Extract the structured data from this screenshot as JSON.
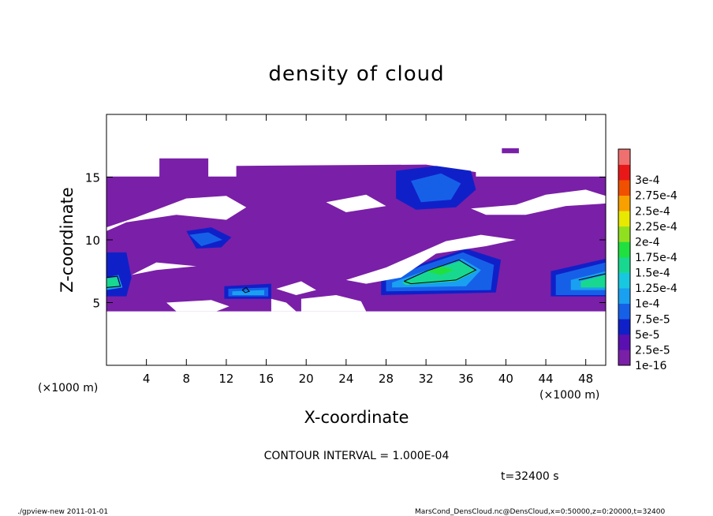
{
  "chart_data": {
    "type": "heatmap",
    "title": "density of cloud",
    "xlabel": "X-coordinate",
    "ylabel": "Z-coordinate",
    "x_unit_left": "(×1000 m)",
    "x_unit_right": "(×1000 m)",
    "xlim": [
      0,
      50
    ],
    "ylim": [
      0,
      20
    ],
    "x_ticks": [
      4,
      8,
      12,
      16,
      20,
      24,
      28,
      32,
      36,
      40,
      44,
      48
    ],
    "x_tick_labels": [
      "4",
      "8",
      "12",
      "16",
      "20",
      "24",
      "28",
      "32",
      "36",
      "40",
      "44",
      "48"
    ],
    "y_ticks": [
      5,
      10,
      15
    ],
    "y_tick_labels": [
      "5",
      "10",
      "15"
    ],
    "colorbar": {
      "levels": [
        "1e-16",
        "2.5e-5",
        "5e-5",
        "7.5e-5",
        "1e-4",
        "1.25e-4",
        "1.5e-4",
        "1.75e-4",
        "2e-4",
        "2.25e-4",
        "2.5e-4",
        "2.75e-4",
        "3e-4"
      ],
      "colors": [
        "#7a1fa8",
        "#5a10b0",
        "#1020c8",
        "#1660e8",
        "#1aa0f0",
        "#18c8e0",
        "#18d890",
        "#20e040",
        "#90e020",
        "#e8e800",
        "#f8a000",
        "#f05000",
        "#e81818",
        "#f07070"
      ]
    },
    "regions": [
      {
        "level": 0,
        "polygon": [
          [
            0,
            15.05
          ],
          [
            50,
            15.05
          ],
          [
            50,
            4.3
          ],
          [
            0,
            4.3
          ]
        ]
      },
      {
        "level": 0,
        "polygon": [
          [
            5.3,
            16.5
          ],
          [
            10.2,
            16.5
          ],
          [
            10.2,
            15.0
          ],
          [
            5.3,
            15.0
          ]
        ]
      },
      {
        "level": 0,
        "polygon": [
          [
            13,
            15.9
          ],
          [
            32,
            16.0
          ],
          [
            37,
            15.4
          ],
          [
            37,
            15.0
          ],
          [
            13,
            15.0
          ]
        ]
      },
      {
        "level": 0,
        "polygon": [
          [
            39.6,
            17.3
          ],
          [
            41.3,
            17.3
          ],
          [
            41.3,
            16.9
          ],
          [
            39.6,
            16.9
          ]
        ]
      },
      {
        "level": 2,
        "polygon": [
          [
            29,
            15.5
          ],
          [
            33,
            15.9
          ],
          [
            36.5,
            15.5
          ],
          [
            37,
            14
          ],
          [
            35,
            12.6
          ],
          [
            31,
            12.4
          ],
          [
            29,
            13.3
          ]
        ]
      },
      {
        "level": 2,
        "polygon": [
          [
            8,
            10.7
          ],
          [
            10.5,
            11.0
          ],
          [
            12.5,
            10.2
          ],
          [
            11.5,
            9.4
          ],
          [
            9,
            9.3
          ]
        ]
      },
      {
        "level": 2,
        "polygon": [
          [
            0,
            9
          ],
          [
            2,
            9
          ],
          [
            2.5,
            7
          ],
          [
            2,
            5.5
          ],
          [
            0,
            5.5
          ]
        ]
      },
      {
        "level": 2,
        "polygon": [
          [
            11.8,
            6.3
          ],
          [
            16.5,
            6.5
          ],
          [
            16.5,
            5.3
          ],
          [
            11.8,
            5.3
          ]
        ]
      },
      {
        "level": 2,
        "polygon": [
          [
            27.5,
            7.0
          ],
          [
            32,
            8.2
          ],
          [
            36,
            9.3
          ],
          [
            39.5,
            8.4
          ],
          [
            39,
            5.8
          ],
          [
            27.5,
            5.6
          ]
        ]
      },
      {
        "level": 2,
        "polygon": [
          [
            44.5,
            7.5
          ],
          [
            50,
            8.5
          ],
          [
            50,
            5.5
          ],
          [
            44.5,
            5.5
          ]
        ]
      },
      {
        "level": 3,
        "polygon": [
          [
            30.5,
            14.7
          ],
          [
            33.5,
            15.3
          ],
          [
            35.5,
            14.5
          ],
          [
            34.5,
            13.2
          ],
          [
            31.5,
            13.0
          ]
        ]
      },
      {
        "level": 3,
        "polygon": [
          [
            8.3,
            10.4
          ],
          [
            10.2,
            10.6
          ],
          [
            11.6,
            10.0
          ],
          [
            9.5,
            9.5
          ]
        ]
      },
      {
        "level": 3,
        "polygon": [
          [
            12.2,
            6.1
          ],
          [
            16.2,
            6.2
          ],
          [
            16.2,
            5.5
          ],
          [
            12.2,
            5.5
          ]
        ]
      },
      {
        "level": 3,
        "polygon": [
          [
            28,
            6.8
          ],
          [
            31.5,
            7.9
          ],
          [
            35.7,
            9.0
          ],
          [
            38.8,
            8.0
          ],
          [
            38.5,
            6.0
          ],
          [
            28,
            5.9
          ]
        ]
      },
      {
        "level": 3,
        "polygon": [
          [
            45,
            7.2
          ],
          [
            50,
            8.2
          ],
          [
            50,
            5.6
          ],
          [
            45,
            5.6
          ]
        ]
      },
      {
        "level": 4,
        "polygon": [
          [
            12.6,
            5.9
          ],
          [
            15.8,
            6.0
          ],
          [
            15.8,
            5.6
          ],
          [
            12.6,
            5.6
          ]
        ]
      },
      {
        "level": 4,
        "polygon": [
          [
            28.6,
            6.6
          ],
          [
            31.8,
            7.5
          ],
          [
            35.6,
            8.5
          ],
          [
            37.5,
            7.6
          ],
          [
            36,
            6.3
          ],
          [
            28.6,
            6.2
          ]
        ]
      },
      {
        "level": 4,
        "polygon": [
          [
            0,
            7.0
          ],
          [
            1.2,
            7.2
          ],
          [
            1.6,
            6.2
          ],
          [
            0,
            6.0
          ]
        ]
      },
      {
        "level": 4,
        "polygon": [
          [
            46.5,
            6.8
          ],
          [
            50,
            7.5
          ],
          [
            50,
            6.0
          ],
          [
            46.5,
            6.0
          ]
        ]
      },
      {
        "level": 6,
        "polygon": [
          [
            29.6,
            6.6
          ],
          [
            32,
            7.4
          ],
          [
            35.4,
            8.3
          ],
          [
            37,
            7.5
          ],
          [
            35,
            6.7
          ],
          [
            30,
            6.4
          ]
        ]
      },
      {
        "level": 6,
        "polygon": [
          [
            0,
            6.9
          ],
          [
            1.0,
            7.0
          ],
          [
            1.3,
            6.3
          ],
          [
            0,
            6.2
          ]
        ]
      },
      {
        "level": 6,
        "polygon": [
          [
            47.5,
            6.7
          ],
          [
            50,
            7.2
          ],
          [
            50,
            6.2
          ],
          [
            47.5,
            6.2
          ]
        ]
      },
      {
        "level": 7,
        "polygon": [
          [
            32,
            7.5
          ],
          [
            33.5,
            7.9
          ],
          [
            34.8,
            7.6
          ],
          [
            33.5,
            7.2
          ]
        ]
      }
    ],
    "gaps": [
      {
        "polygon": [
          [
            0,
            11.0
          ],
          [
            3,
            11.8
          ],
          [
            8,
            13.3
          ],
          [
            12,
            13.5
          ],
          [
            14,
            12.6
          ],
          [
            12,
            11.6
          ],
          [
            7,
            12.0
          ],
          [
            2,
            11.4
          ],
          [
            0,
            10.7
          ]
        ]
      },
      {
        "polygon": [
          [
            22,
            13.0
          ],
          [
            26,
            13.6
          ],
          [
            28,
            12.7
          ],
          [
            24,
            12.2
          ]
        ]
      },
      {
        "polygon": [
          [
            36.5,
            12.5
          ],
          [
            41,
            12.8
          ],
          [
            44,
            13.6
          ],
          [
            48,
            14.0
          ],
          [
            50,
            13.5
          ],
          [
            50,
            12.9
          ],
          [
            46,
            12.7
          ],
          [
            42,
            12.0
          ],
          [
            38,
            12.0
          ]
        ]
      },
      {
        "polygon": [
          [
            24,
            6.8
          ],
          [
            28,
            7.8
          ],
          [
            34,
            9.9
          ],
          [
            37.5,
            10.4
          ],
          [
            41,
            10.0
          ],
          [
            38,
            9.5
          ],
          [
            33,
            8.9
          ],
          [
            29.5,
            7.0
          ],
          [
            26,
            6.5
          ]
        ]
      },
      {
        "polygon": [
          [
            2.5,
            7.2
          ],
          [
            5,
            8.2
          ],
          [
            9,
            7.9
          ],
          [
            5,
            7.6
          ]
        ]
      },
      {
        "polygon": [
          [
            17,
            6.1
          ],
          [
            19.5,
            6.7
          ],
          [
            21,
            6.0
          ],
          [
            19,
            5.6
          ]
        ]
      },
      {
        "polygon": [
          [
            16.5,
            5.3
          ],
          [
            18,
            5.0
          ],
          [
            19,
            4.3
          ],
          [
            16.5,
            4.3
          ]
        ]
      },
      {
        "polygon": [
          [
            6,
            5.0
          ],
          [
            10.5,
            5.2
          ],
          [
            12.3,
            4.7
          ],
          [
            11,
            4.3
          ],
          [
            7,
            4.3
          ]
        ]
      },
      {
        "polygon": [
          [
            19.5,
            5.3
          ],
          [
            23,
            5.6
          ],
          [
            25.5,
            5.1
          ],
          [
            26,
            4.3
          ],
          [
            19.5,
            4.3
          ]
        ]
      }
    ],
    "contours": [
      [
        [
          29.8,
          6.7
        ],
        [
          32,
          7.5
        ],
        [
          35.3,
          8.4
        ],
        [
          37.0,
          7.6
        ],
        [
          35.0,
          6.8
        ],
        [
          30.5,
          6.5
        ],
        [
          29.8,
          6.7
        ]
      ],
      [
        [
          0,
          7.0
        ],
        [
          1.1,
          7.1
        ],
        [
          1.4,
          6.3
        ],
        [
          0,
          6.2
        ]
      ],
      [
        [
          47.3,
          6.8
        ],
        [
          50,
          7.3
        ]
      ],
      [
        [
          13.6,
          6.0
        ],
        [
          14.0,
          6.2
        ],
        [
          14.3,
          5.9
        ],
        [
          13.9,
          5.8
        ],
        [
          13.6,
          6.0
        ]
      ]
    ]
  },
  "contour_interval_text": "CONTOUR INTERVAL = 1.000E-04",
  "time_text": "t=32400 s",
  "footer_left": "./gpview-new   2011-01-01",
  "footer_right": "MarsCond_DensCloud.nc@DensCloud,x=0:50000,z=0:20000,t=32400"
}
